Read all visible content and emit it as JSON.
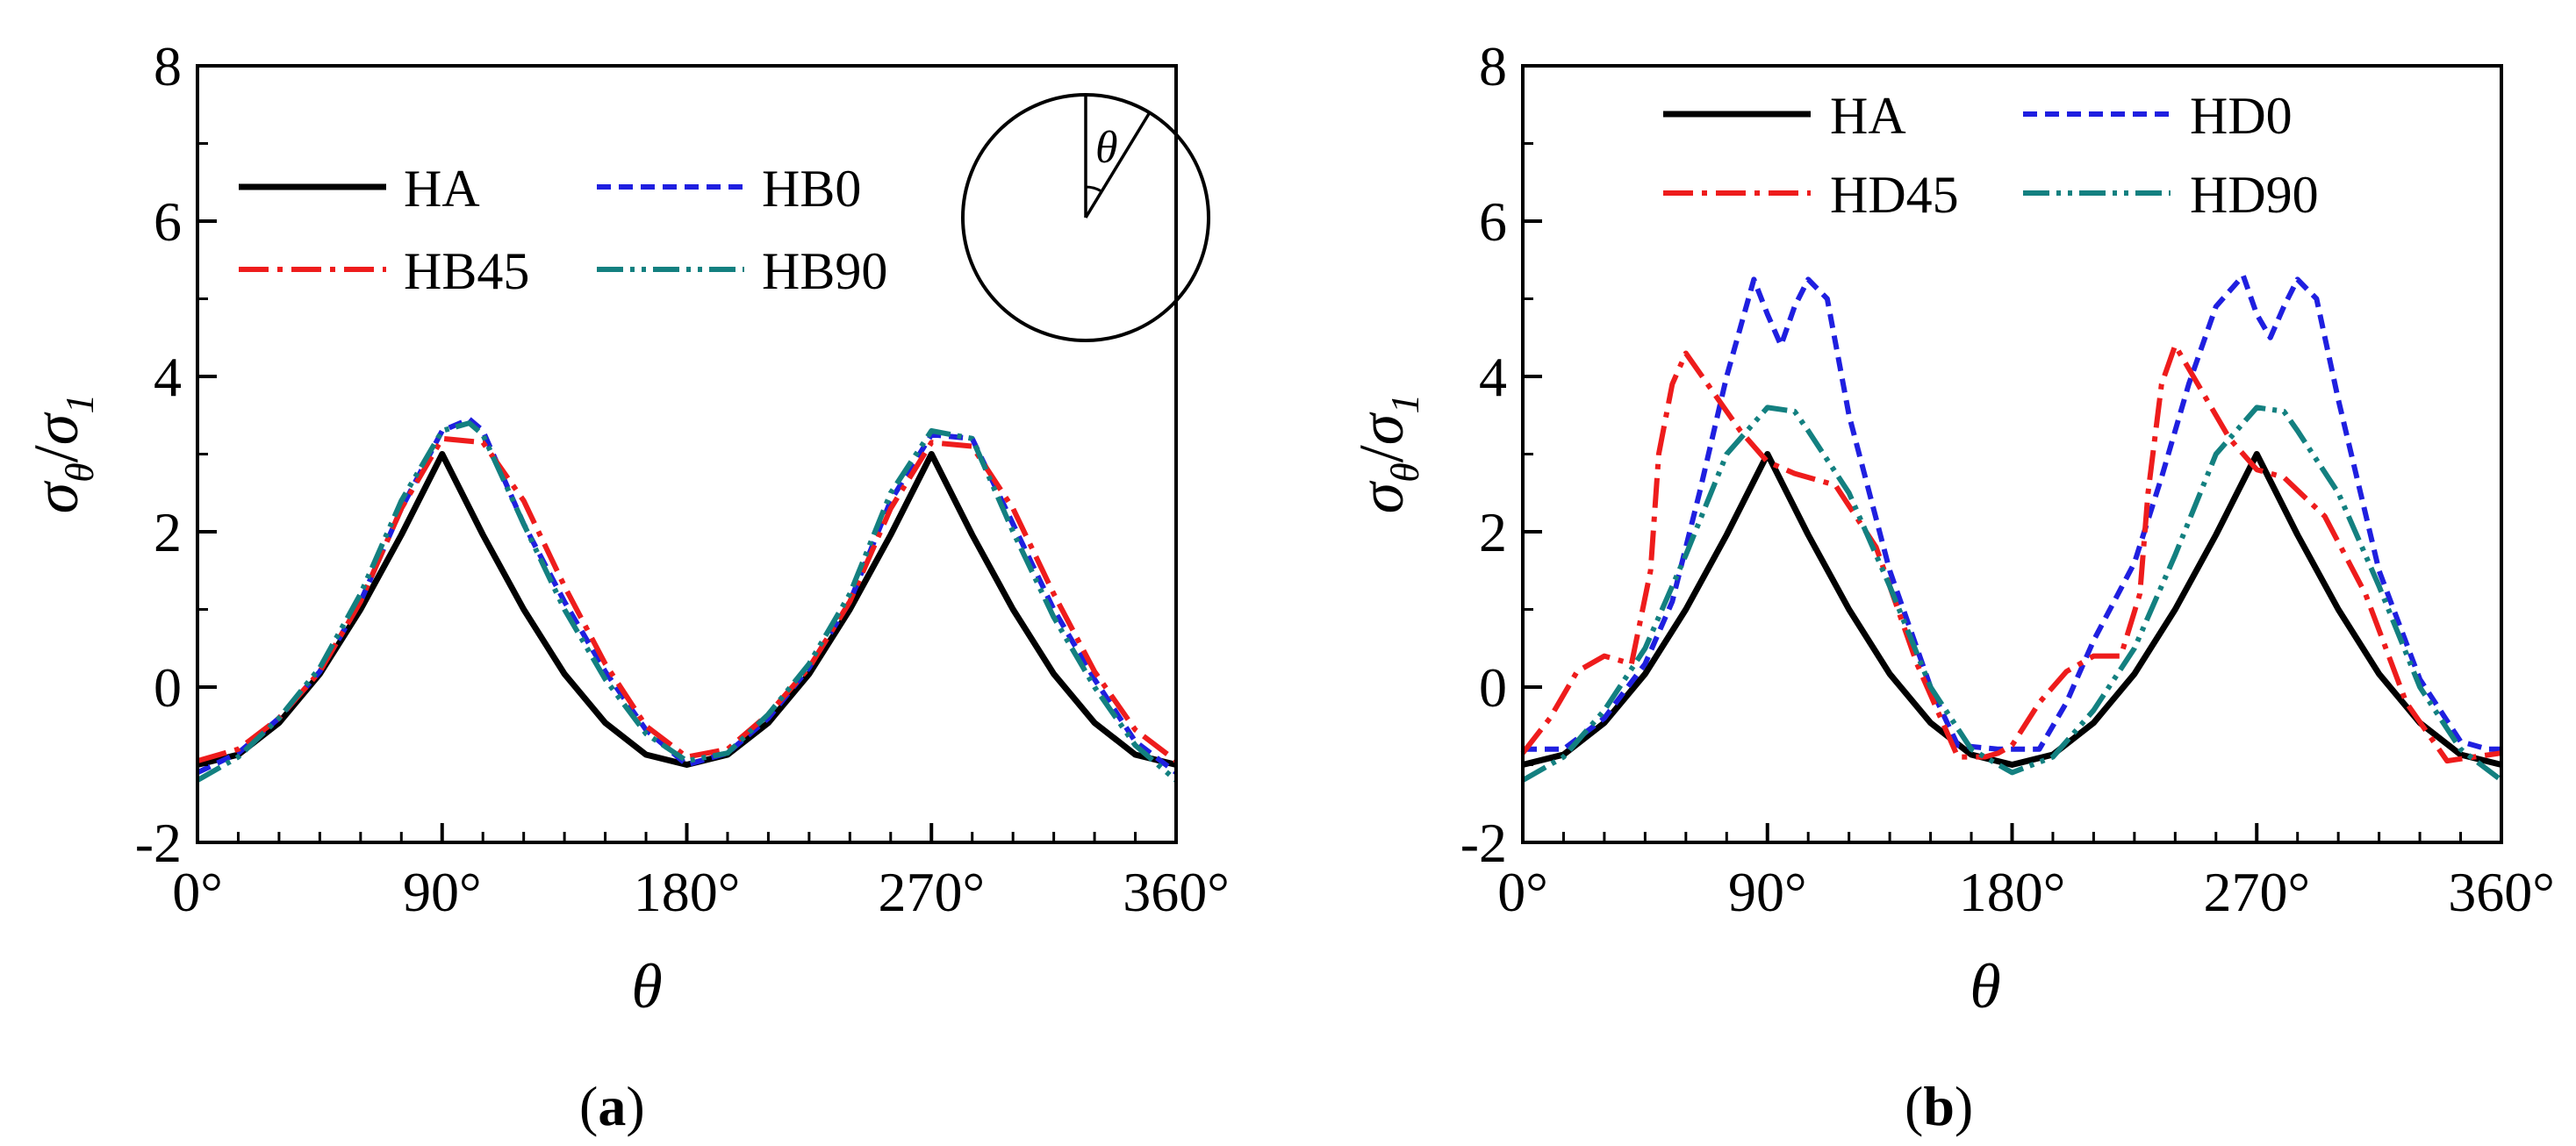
{
  "figure": {
    "panels": [
      {
        "id": "a",
        "caption_open": "(",
        "caption_letter": "a",
        "caption_close": ")",
        "ylabel_sigma": "σ",
        "ylabel_sub_theta": "θ",
        "ylabel_slash": "/",
        "ylabel_sigma2": "σ",
        "ylabel_sub_1": "1",
        "xlabel": "θ",
        "inset_label": "θ",
        "legend": [
          "HA",
          "HB0",
          "HB45",
          "HB90"
        ]
      },
      {
        "id": "b",
        "caption_open": "(",
        "caption_letter": "b",
        "caption_close": ")",
        "ylabel_sigma": "σ",
        "ylabel_sub_theta": "θ",
        "ylabel_slash": "/",
        "ylabel_sigma2": "σ",
        "ylabel_sub_1": "1",
        "xlabel": "θ",
        "legend": [
          "HA",
          "HD0",
          "HD45",
          "HD90"
        ]
      }
    ]
  },
  "chart_data": [
    {
      "type": "line",
      "panel": "a",
      "title": "",
      "xlabel": "θ",
      "ylabel": "σθ/σ1",
      "xlim": [
        0,
        360
      ],
      "ylim": [
        -2,
        8
      ],
      "xticks": [
        0,
        90,
        180,
        270,
        360
      ],
      "xtick_labels": [
        "0°",
        "90°",
        "180°",
        "270°",
        "360°"
      ],
      "yticks": [
        -2,
        0,
        2,
        4,
        6,
        8
      ],
      "ytick_labels": [
        "-2",
        "0",
        "2",
        "4",
        "6",
        "8"
      ],
      "legend_position": "top-left",
      "series": [
        {
          "name": "HA",
          "color": "#000000",
          "style": "solid",
          "x": [
            0,
            15,
            30,
            45,
            60,
            75,
            90,
            105,
            120,
            135,
            150,
            165,
            180,
            195,
            210,
            225,
            240,
            255,
            270,
            285,
            300,
            315,
            330,
            345,
            360
          ],
          "y": [
            -1,
            -0.87,
            -0.46,
            0.17,
            1.0,
            1.96,
            3.0,
            1.96,
            1.0,
            0.17,
            -0.46,
            -0.87,
            -1,
            -0.87,
            -0.46,
            0.17,
            1.0,
            1.96,
            3.0,
            1.96,
            1.0,
            0.17,
            -0.46,
            -0.87,
            -1
          ]
        },
        {
          "name": "HB0",
          "color": "#1f1fe0",
          "style": "dash",
          "x": [
            0,
            15,
            30,
            45,
            60,
            75,
            90,
            100,
            105,
            120,
            135,
            150,
            165,
            180,
            195,
            210,
            225,
            240,
            255,
            270,
            285,
            300,
            315,
            330,
            345,
            360
          ],
          "y": [
            -1.1,
            -0.85,
            -0.4,
            0.2,
            1.1,
            2.3,
            3.3,
            3.45,
            3.3,
            2.1,
            1.1,
            0.2,
            -0.55,
            -1.0,
            -0.85,
            -0.4,
            0.25,
            1.1,
            2.4,
            3.25,
            3.2,
            2.1,
            1.0,
            0.1,
            -0.7,
            -1.1
          ]
        },
        {
          "name": "HB45",
          "color": "#ee1c1c",
          "style": "dashdot",
          "x": [
            0,
            15,
            30,
            45,
            60,
            75,
            90,
            105,
            120,
            135,
            150,
            165,
            180,
            195,
            210,
            225,
            240,
            255,
            270,
            285,
            300,
            315,
            330,
            345,
            360
          ],
          "y": [
            -0.95,
            -0.8,
            -0.4,
            0.2,
            1.1,
            2.3,
            3.2,
            3.15,
            2.4,
            1.3,
            0.3,
            -0.5,
            -0.9,
            -0.8,
            -0.35,
            0.25,
            1.1,
            2.3,
            3.15,
            3.1,
            2.3,
            1.2,
            0.2,
            -0.55,
            -0.95
          ]
        },
        {
          "name": "HB90",
          "color": "#138080",
          "style": "dashdotdot",
          "x": [
            0,
            15,
            30,
            45,
            60,
            75,
            90,
            100,
            105,
            120,
            135,
            150,
            165,
            180,
            195,
            210,
            225,
            240,
            255,
            270,
            285,
            300,
            315,
            330,
            345,
            360
          ],
          "y": [
            -1.2,
            -0.9,
            -0.4,
            0.25,
            1.2,
            2.4,
            3.3,
            3.4,
            3.25,
            2.1,
            1.0,
            0.1,
            -0.6,
            -0.95,
            -0.85,
            -0.35,
            0.3,
            1.2,
            2.5,
            3.3,
            3.2,
            2.0,
            0.9,
            0.0,
            -0.75,
            -1.2
          ]
        }
      ]
    },
    {
      "type": "line",
      "panel": "b",
      "title": "",
      "xlabel": "θ",
      "ylabel": "σθ/σ1",
      "xlim": [
        0,
        360
      ],
      "ylim": [
        -2,
        8
      ],
      "xticks": [
        0,
        90,
        180,
        270,
        360
      ],
      "xtick_labels": [
        "0°",
        "90°",
        "180°",
        "270°",
        "360°"
      ],
      "yticks": [
        -2,
        0,
        2,
        4,
        6,
        8
      ],
      "ytick_labels": [
        "-2",
        "0",
        "2",
        "4",
        "6",
        "8"
      ],
      "legend_position": "top",
      "series": [
        {
          "name": "HA",
          "color": "#000000",
          "style": "solid",
          "x": [
            0,
            15,
            30,
            45,
            60,
            75,
            90,
            105,
            120,
            135,
            150,
            165,
            180,
            195,
            210,
            225,
            240,
            255,
            270,
            285,
            300,
            315,
            330,
            345,
            360
          ],
          "y": [
            -1,
            -0.87,
            -0.46,
            0.17,
            1.0,
            1.96,
            3.0,
            1.96,
            1.0,
            0.17,
            -0.46,
            -0.87,
            -1,
            -0.87,
            -0.46,
            0.17,
            1.0,
            1.96,
            3.0,
            1.96,
            1.0,
            0.17,
            -0.46,
            -0.87,
            -1
          ]
        },
        {
          "name": "HD0",
          "color": "#1f1fe0",
          "style": "dash",
          "x": [
            0,
            15,
            30,
            45,
            55,
            65,
            75,
            85,
            90,
            95,
            100,
            105,
            112,
            120,
            135,
            150,
            160,
            175,
            190,
            200,
            210,
            225,
            235,
            245,
            255,
            265,
            270,
            275,
            280,
            285,
            292,
            300,
            315,
            330,
            345,
            355,
            360
          ],
          "y": [
            -0.8,
            -0.8,
            -0.4,
            0.3,
            1.1,
            2.5,
            4.0,
            5.25,
            4.8,
            4.4,
            4.9,
            5.25,
            5.0,
            3.5,
            1.5,
            0.0,
            -0.75,
            -0.8,
            -0.8,
            -0.2,
            0.6,
            1.6,
            2.7,
            3.9,
            4.9,
            5.3,
            4.8,
            4.5,
            4.9,
            5.25,
            5.0,
            3.7,
            1.5,
            0.1,
            -0.7,
            -0.8,
            -0.8
          ]
        },
        {
          "name": "HD45",
          "color": "#ee1c1c",
          "style": "dashdot",
          "x": [
            0,
            10,
            20,
            30,
            40,
            47,
            50,
            55,
            60,
            70,
            80,
            90,
            100,
            115,
            130,
            145,
            160,
            170,
            175,
            180,
            190,
            200,
            210,
            220,
            227,
            230,
            235,
            240,
            250,
            260,
            270,
            280,
            295,
            310,
            325,
            340,
            350,
            360
          ],
          "y": [
            -0.85,
            -0.4,
            0.2,
            0.4,
            0.3,
            1.5,
            3.0,
            3.9,
            4.3,
            3.8,
            3.3,
            2.9,
            2.75,
            2.6,
            1.8,
            0.3,
            -0.9,
            -0.9,
            -0.85,
            -0.75,
            -0.2,
            0.2,
            0.4,
            0.4,
            1.2,
            2.5,
            3.9,
            4.4,
            3.8,
            3.2,
            2.8,
            2.7,
            2.2,
            1.2,
            -0.2,
            -0.95,
            -0.9,
            -0.85
          ]
        },
        {
          "name": "HD90",
          "color": "#138080",
          "style": "dashdotdot",
          "x": [
            0,
            15,
            30,
            45,
            60,
            75,
            90,
            100,
            105,
            120,
            135,
            150,
            165,
            180,
            195,
            210,
            225,
            240,
            255,
            270,
            280,
            285,
            300,
            315,
            330,
            345,
            360
          ],
          "y": [
            -1.2,
            -0.9,
            -0.3,
            0.5,
            1.7,
            3.0,
            3.6,
            3.55,
            3.3,
            2.5,
            1.3,
            0.0,
            -0.8,
            -1.1,
            -0.9,
            -0.3,
            0.5,
            1.7,
            3.0,
            3.6,
            3.55,
            3.3,
            2.5,
            1.3,
            0.0,
            -0.8,
            -1.2
          ]
        }
      ]
    }
  ]
}
